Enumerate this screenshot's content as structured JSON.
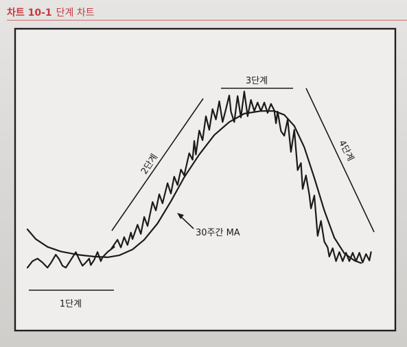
{
  "header": {
    "figure_label": "차트 10-1",
    "figure_title": "단계 차트"
  },
  "chart_data": {
    "type": "line",
    "title": "단계 차트",
    "xlabel": "",
    "ylabel": "",
    "grid": false,
    "legend": "none",
    "colors": {
      "line": "#1a1a1a",
      "frame": "#1f1f1f",
      "header": "#c8383e"
    },
    "series": [
      {
        "name": "",
        "points": [
          [
            0,
            2.2
          ],
          [
            3,
            3.2
          ],
          [
            6,
            3.6
          ],
          [
            9,
            3.0
          ],
          [
            12,
            2.2
          ],
          [
            14,
            2.9
          ],
          [
            17,
            4.2
          ],
          [
            19,
            3.5
          ],
          [
            21,
            2.5
          ],
          [
            23,
            2.2
          ],
          [
            25,
            3.0
          ],
          [
            27,
            3.8
          ],
          [
            29,
            4.6
          ],
          [
            31,
            3.5
          ],
          [
            33,
            2.5
          ],
          [
            35,
            3.0
          ],
          [
            37,
            3.6
          ],
          [
            38,
            2.6
          ],
          [
            40,
            3.4
          ],
          [
            42,
            4.6
          ],
          [
            44,
            3.2
          ],
          [
            45,
            3.8
          ],
          [
            48,
            4.6
          ],
          [
            52,
            5.4
          ],
          [
            50,
            5.0
          ],
          [
            54,
            6.5
          ],
          [
            56,
            5.3
          ],
          [
            58,
            6.9
          ],
          [
            60,
            5.7
          ],
          [
            62,
            7.6
          ],
          [
            63,
            6.6
          ],
          [
            66,
            8.8
          ],
          [
            68,
            7.4
          ],
          [
            70,
            10.0
          ],
          [
            72,
            8.6
          ],
          [
            75,
            12.3
          ],
          [
            77,
            11.0
          ],
          [
            79,
            13.5
          ],
          [
            81,
            12.1
          ],
          [
            84,
            15.2
          ],
          [
            86,
            13.6
          ],
          [
            88,
            16.2
          ],
          [
            90,
            14.9
          ],
          [
            92,
            17.3
          ],
          [
            94,
            16.4
          ],
          [
            97,
            19.8
          ],
          [
            99,
            18.8
          ],
          [
            100,
            21.7
          ],
          [
            101,
            19.6
          ],
          [
            103,
            23.3
          ],
          [
            105,
            21.8
          ],
          [
            107,
            25.5
          ],
          [
            109,
            23.4
          ],
          [
            111,
            26.6
          ],
          [
            113,
            25.0
          ],
          [
            115,
            27.8
          ],
          [
            117,
            24.6
          ],
          [
            119,
            26.6
          ],
          [
            121,
            28.7
          ],
          [
            122,
            26.2
          ],
          [
            124,
            24.6
          ],
          [
            126,
            28.6
          ],
          [
            128,
            25.3
          ],
          [
            130,
            29.3
          ],
          [
            132,
            25.5
          ],
          [
            134,
            28.0
          ],
          [
            136,
            26.3
          ],
          [
            138,
            27.6
          ],
          [
            140,
            26.3
          ],
          [
            142,
            27.6
          ],
          [
            144,
            26.0
          ],
          [
            146,
            27.4
          ],
          [
            148,
            26.4
          ],
          [
            149,
            24.4
          ],
          [
            150,
            26.2
          ],
          [
            152,
            23.2
          ],
          [
            154,
            22.5
          ],
          [
            156,
            25.0
          ],
          [
            158,
            20.0
          ],
          [
            160,
            23.4
          ],
          [
            162,
            17.2
          ],
          [
            164,
            18.3
          ],
          [
            165,
            14.3
          ],
          [
            167,
            16.4
          ],
          [
            169,
            13.4
          ],
          [
            170,
            11.3
          ],
          [
            172,
            13.3
          ],
          [
            174,
            7.1
          ],
          [
            176,
            9.4
          ],
          [
            178,
            6.2
          ],
          [
            180,
            5.3
          ],
          [
            181,
            3.9
          ],
          [
            183,
            5.2
          ],
          [
            185,
            3.2
          ],
          [
            187,
            4.6
          ],
          [
            189,
            3.2
          ],
          [
            191,
            4.5
          ],
          [
            193,
            3.2
          ],
          [
            195,
            4.5
          ],
          [
            197,
            3.2
          ],
          [
            199,
            4.5
          ],
          [
            201,
            3.0
          ],
          [
            203,
            4.3
          ],
          [
            205,
            3.3
          ],
          [
            206,
            4.6
          ]
        ]
      },
      {
        "name": "",
        "points": [
          [
            0,
            8.1
          ],
          [
            5,
            6.6
          ],
          [
            12,
            5.4
          ],
          [
            20,
            4.7
          ],
          [
            30,
            4.2
          ],
          [
            40,
            3.9
          ],
          [
            48,
            3.8
          ],
          [
            55,
            4.1
          ],
          [
            63,
            5.0
          ],
          [
            70,
            6.5
          ],
          [
            78,
            9.0
          ],
          [
            86,
            12.4
          ],
          [
            94,
            16.1
          ],
          [
            103,
            19.6
          ],
          [
            112,
            22.6
          ],
          [
            121,
            24.6
          ],
          [
            130,
            25.9
          ],
          [
            140,
            26.3
          ],
          [
            148,
            26.3
          ],
          [
            154,
            25.7
          ],
          [
            160,
            24.0
          ],
          [
            166,
            20.7
          ],
          [
            172,
            16.0
          ],
          [
            178,
            11.0
          ],
          [
            184,
            6.8
          ],
          [
            190,
            4.4
          ],
          [
            196,
            3.3
          ],
          [
            200,
            2.9
          ]
        ]
      }
    ],
    "annotations": [
      {
        "text": "1단계"
      },
      {
        "text": "2단계"
      },
      {
        "text": "3단계"
      },
      {
        "text": "4단계"
      },
      {
        "text": "30주간 MA"
      }
    ]
  }
}
